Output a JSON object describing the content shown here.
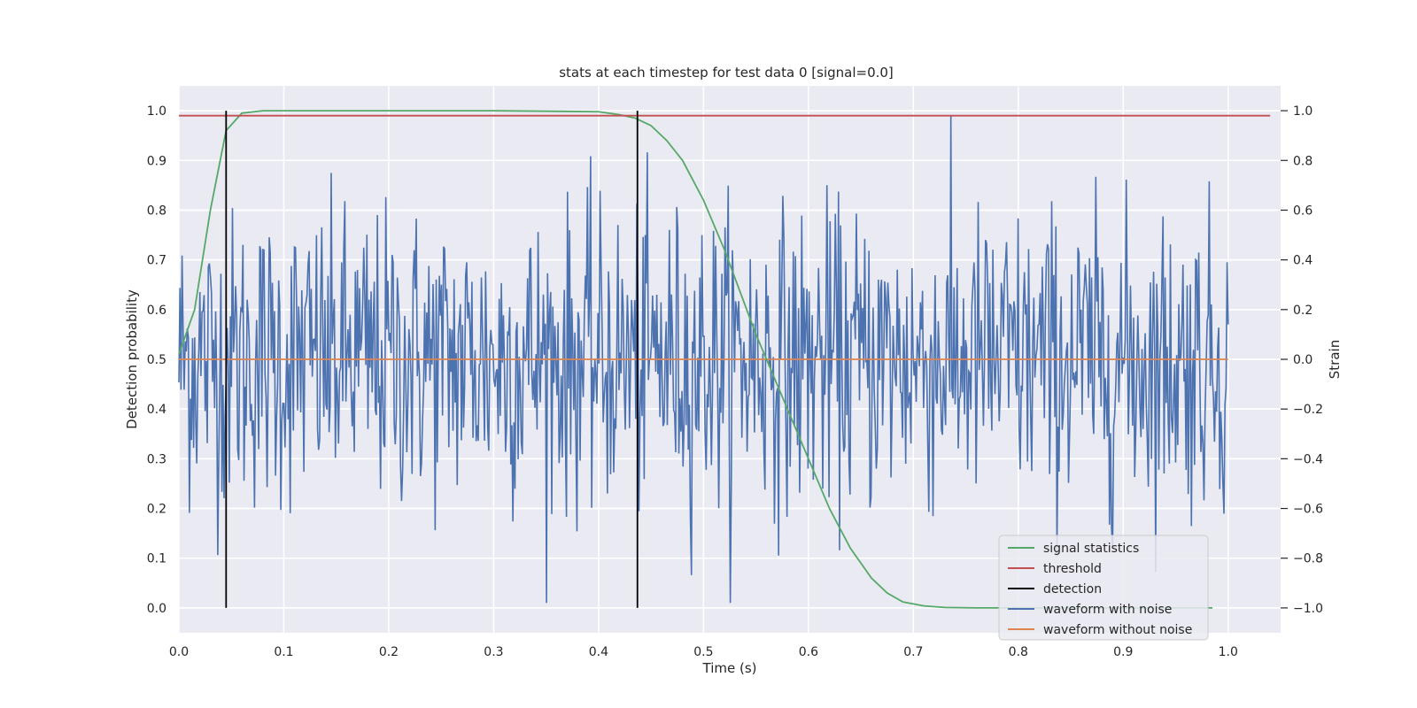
{
  "chart_data": {
    "type": "line",
    "title": "stats at each timestep for test data 0 [signal=0.0]",
    "xlabel": "Time (s)",
    "ylabel_left": "Detection probability",
    "ylabel_right": "Strain",
    "xlim": [
      0.0,
      1.05
    ],
    "ylim_left": [
      -0.05,
      1.05
    ],
    "ylim_right": [
      -1.1,
      1.1
    ],
    "x_ticks": [
      "0.0",
      "0.1",
      "0.2",
      "0.3",
      "0.4",
      "0.5",
      "0.6",
      "0.7",
      "0.8",
      "0.9",
      "1.0"
    ],
    "y_left_ticks": [
      "0.0",
      "0.1",
      "0.2",
      "0.3",
      "0.4",
      "0.5",
      "0.6",
      "0.7",
      "0.8",
      "0.9",
      "1.0"
    ],
    "y_right_ticks": [
      "−1.0",
      "−0.8",
      "−0.6",
      "−0.4",
      "−0.2",
      "0.0",
      "0.2",
      "0.4",
      "0.6",
      "0.8",
      "1.0"
    ],
    "grid": true,
    "legend_position": "lower-right",
    "colors": {
      "signal_statistics": "#55a868",
      "threshold": "#c44e52",
      "detection": "#000000",
      "waveform_with_noise": "#4c72b0",
      "waveform_without_noise": "#dd8452",
      "plot_background": "#eaeaf2",
      "grid": "#ffffff"
    },
    "series": [
      {
        "name": "signal statistics",
        "axis": "left",
        "x": [
          0.0,
          0.015,
          0.03,
          0.045,
          0.06,
          0.08,
          0.1,
          0.15,
          0.2,
          0.3,
          0.4,
          0.42,
          0.435,
          0.45,
          0.465,
          0.48,
          0.5,
          0.52,
          0.55,
          0.58,
          0.6,
          0.62,
          0.64,
          0.66,
          0.675,
          0.69,
          0.71,
          0.73,
          0.76,
          0.8,
          0.9,
          0.985
        ],
        "y": [
          0.51,
          0.6,
          0.8,
          0.96,
          0.995,
          1.0,
          1.0,
          1.0,
          1.0,
          1.0,
          0.998,
          0.992,
          0.985,
          0.97,
          0.94,
          0.9,
          0.82,
          0.72,
          0.55,
          0.4,
          0.3,
          0.2,
          0.12,
          0.06,
          0.03,
          0.012,
          0.004,
          0.001,
          0.0,
          0.0,
          0.0,
          0.0
        ]
      },
      {
        "name": "threshold",
        "axis": "left",
        "x": [
          0.0,
          1.04
        ],
        "y": [
          0.99,
          0.99
        ]
      },
      {
        "name": "detection",
        "axis": "left",
        "vlines": [
          0.045,
          0.437
        ],
        "ymin": 0.0,
        "ymax": 1.0
      },
      {
        "name": "waveform with noise",
        "axis": "right",
        "x_range": [
          0.0,
          1.0
        ],
        "n_points": 1000,
        "amplitude": 1.0,
        "description_values": "Gaussian-like noise around 0 strain, mostly within -0.6 to 0.6 with peaks near ±1.0"
      },
      {
        "name": "waveform without noise",
        "axis": "right",
        "x": [
          0.0,
          1.0
        ],
        "y": [
          0.0,
          0.0
        ]
      }
    ]
  }
}
